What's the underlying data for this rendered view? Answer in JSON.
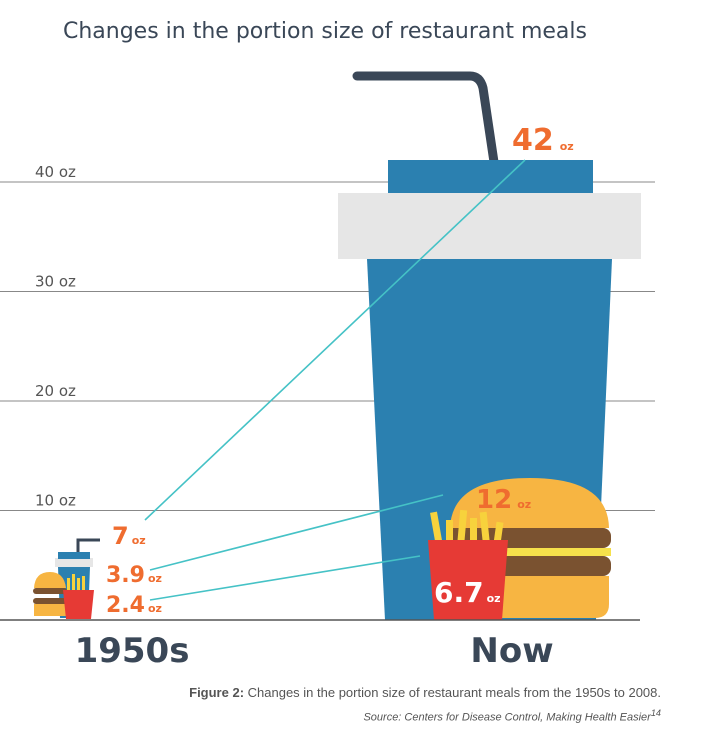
{
  "chart_data": {
    "type": "bar",
    "title": "Changes in the portion size of restaurant meals",
    "y_ticks": [
      "10 oz",
      "20 oz",
      "30 oz",
      "40 oz"
    ],
    "ylim": [
      0,
      45
    ],
    "unit": "oz",
    "grid": true,
    "categories": [
      "1950s",
      "Now"
    ],
    "series": [
      {
        "name": "soda",
        "values": [
          7,
          42
        ]
      },
      {
        "name": "hamburger",
        "values": [
          3.9,
          12
        ]
      },
      {
        "name": "french fries",
        "values": [
          2.4,
          6.7
        ]
      }
    ],
    "labels": {
      "old": [
        "7",
        "3.9",
        "2.4"
      ],
      "now": [
        "42",
        "12",
        "6.7"
      ]
    },
    "colors": {
      "soda_cup": "#2b80b0",
      "lid": "#e6e6e6",
      "straw": "#3a4757",
      "bun": "#f7b542",
      "patty": "#7a5230",
      "cheese": "#f6e14b",
      "fries_box": "#e63a35",
      "fries": "#f7d23c",
      "label": "#ef6c2f",
      "leader": "#45c2c6"
    }
  },
  "caption": {
    "prefix": "Figure 2:",
    "text": " Changes in the portion size of restaurant meals from the 1950s to 2008.",
    "source": "Source: Centers for Disease Control, Making Health Easier",
    "source_ref": "14"
  }
}
